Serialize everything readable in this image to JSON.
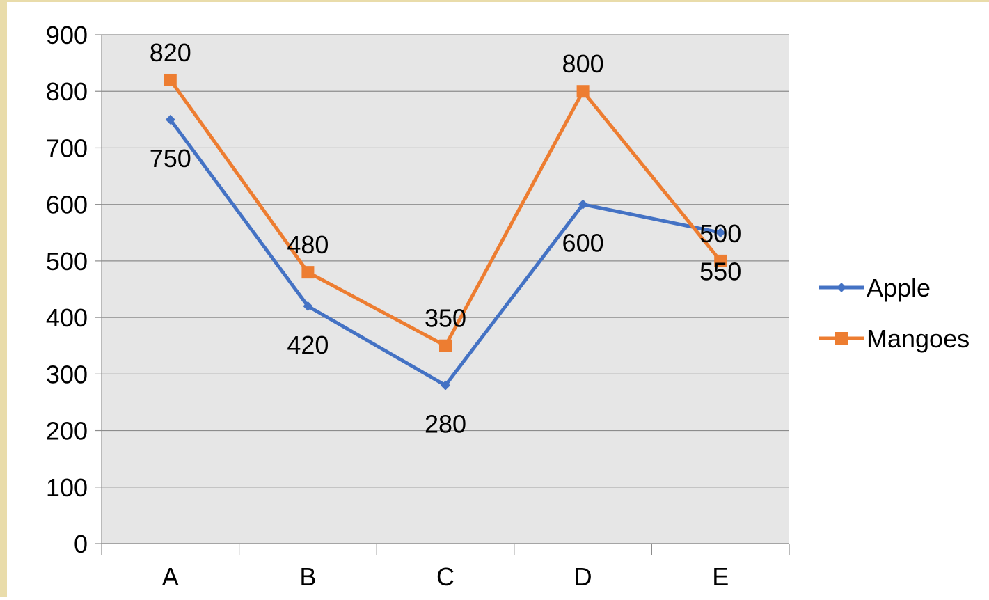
{
  "chart_data": {
    "type": "line",
    "categories": [
      "A",
      "B",
      "C",
      "D",
      "E"
    ],
    "series": [
      {
        "name": "Apple",
        "values": [
          750,
          420,
          280,
          600,
          550
        ],
        "color": "#4472c4",
        "marker": "diamond"
      },
      {
        "name": "Mangoes",
        "values": [
          820,
          480,
          350,
          800,
          500
        ],
        "color": "#ed7d31",
        "marker": "square"
      }
    ],
    "y_ticks": [
      "0",
      "100",
      "200",
      "300",
      "400",
      "500",
      "600",
      "700",
      "800",
      "900"
    ],
    "ylim": [
      0,
      900
    ],
    "title": "",
    "xlabel": "",
    "ylabel": "",
    "grid": true,
    "legend": "right",
    "plot_background": "#e6e6e6",
    "data_labels": [
      [
        "750",
        "420",
        "280",
        "600",
        "550"
      ],
      [
        "820",
        "480",
        "350",
        "800",
        "500"
      ]
    ]
  }
}
